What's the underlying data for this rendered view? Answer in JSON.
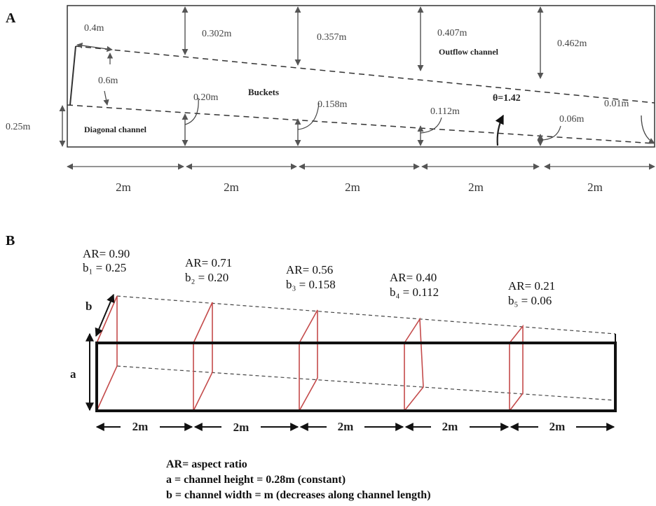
{
  "panel_a": {
    "label": "A",
    "tops": [
      "0.4m",
      "0.302m",
      "0.357m",
      "0.407m",
      "0.462m"
    ],
    "left_gap": "0.6m",
    "left_height": "0.25m",
    "bottoms": [
      "0.20m",
      "0.158m",
      "0.112m",
      "0.06m",
      "0.01m"
    ],
    "buckets": "Buckets",
    "outflow": "Outflow channel",
    "diagonal": "Diagonal channel",
    "theta": "θ=1.42",
    "segments": [
      "2m",
      "2m",
      "2m",
      "2m",
      "2m"
    ]
  },
  "panel_b": {
    "label": "B",
    "sections": [
      {
        "ar": "AR= 0.90",
        "b": "b₁ = 0.25"
      },
      {
        "ar": "AR= 0.71",
        "b": "b₂ = 0.20"
      },
      {
        "ar": "AR= 0.56",
        "b": "b₃ = 0.158"
      },
      {
        "ar": "AR= 0.40",
        "b": "b₄ = 0.112"
      },
      {
        "ar": "AR= 0.21",
        "b": "b₅ = 0.06"
      }
    ],
    "b_axis": "b",
    "a_axis": "a",
    "segments": [
      "2m",
      "2m",
      "2m",
      "2m",
      "2m"
    ],
    "legend": [
      "AR= aspect ratio",
      "a = channel height = 0.28m (constant)",
      "b = channel width = m (decreases along channel length)"
    ]
  }
}
